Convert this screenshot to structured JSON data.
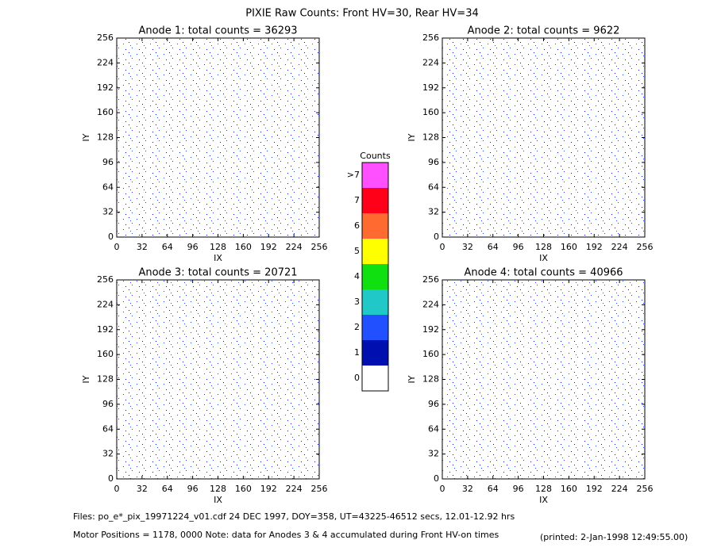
{
  "title": "PIXIE Raw Counts:  Front HV=30, Rear HV=34",
  "chart_data": [
    {
      "type": "heatmap",
      "title": "Anode 1: total counts = 36293",
      "xlabel": "IX",
      "ylabel": "IY",
      "xlim": [
        0,
        256
      ],
      "ylim": [
        0,
        256
      ],
      "xticks": [
        0,
        32,
        64,
        96,
        128,
        160,
        192,
        224,
        256
      ],
      "yticks": [
        0,
        32,
        64,
        96,
        128,
        160,
        192,
        224,
        256
      ]
    },
    {
      "type": "heatmap",
      "title": "Anode 2: total counts = 9622",
      "xlabel": "IX",
      "ylabel": "IY",
      "xlim": [
        0,
        256
      ],
      "ylim": [
        0,
        256
      ],
      "xticks": [
        0,
        32,
        64,
        96,
        128,
        160,
        192,
        224,
        256
      ],
      "yticks": [
        0,
        32,
        64,
        96,
        128,
        160,
        192,
        224,
        256
      ]
    },
    {
      "type": "heatmap",
      "title": "Anode 3: total counts = 20721",
      "xlabel": "IX",
      "ylabel": "IY",
      "xlim": [
        0,
        256
      ],
      "ylim": [
        0,
        256
      ],
      "xticks": [
        0,
        32,
        64,
        96,
        128,
        160,
        192,
        224,
        256
      ],
      "yticks": [
        0,
        32,
        64,
        96,
        128,
        160,
        192,
        224,
        256
      ]
    },
    {
      "type": "heatmap",
      "title": "Anode 4: total counts = 40966",
      "xlabel": "IX",
      "ylabel": "IY",
      "xlim": [
        0,
        256
      ],
      "ylim": [
        0,
        256
      ],
      "xticks": [
        0,
        32,
        64,
        96,
        128,
        160,
        192,
        224,
        256
      ],
      "yticks": [
        0,
        32,
        64,
        96,
        128,
        160,
        192,
        224,
        256
      ]
    }
  ],
  "colorbar": {
    "title": "Counts",
    "levels": [
      {
        "label": "0",
        "color": "#ffffff"
      },
      {
        "label": "1",
        "color": "#0010b0"
      },
      {
        "label": "2",
        "color": "#2050ff"
      },
      {
        "label": "3",
        "color": "#20c8c8"
      },
      {
        "label": "4",
        "color": "#10e010"
      },
      {
        "label": "5",
        "color": "#ffff00"
      },
      {
        "label": "6",
        "color": "#ff6a30"
      },
      {
        "label": "7",
        "color": "#ff0018"
      },
      {
        "label": ">7",
        "color": "#ff50ff"
      }
    ]
  },
  "footer": {
    "files": "Files: po_e*_pix_19971224_v01.cdf    24 DEC 1997, DOY=358, UT=43225-46512 secs, 12.01-12.92 hrs",
    "motor": "Motor Positions = 1178, 0000    Note: data for Anodes 3 & 4 accumulated during Front HV-on times",
    "printed": "(printed:  2-Jan-1998 12:49:55.00)"
  }
}
